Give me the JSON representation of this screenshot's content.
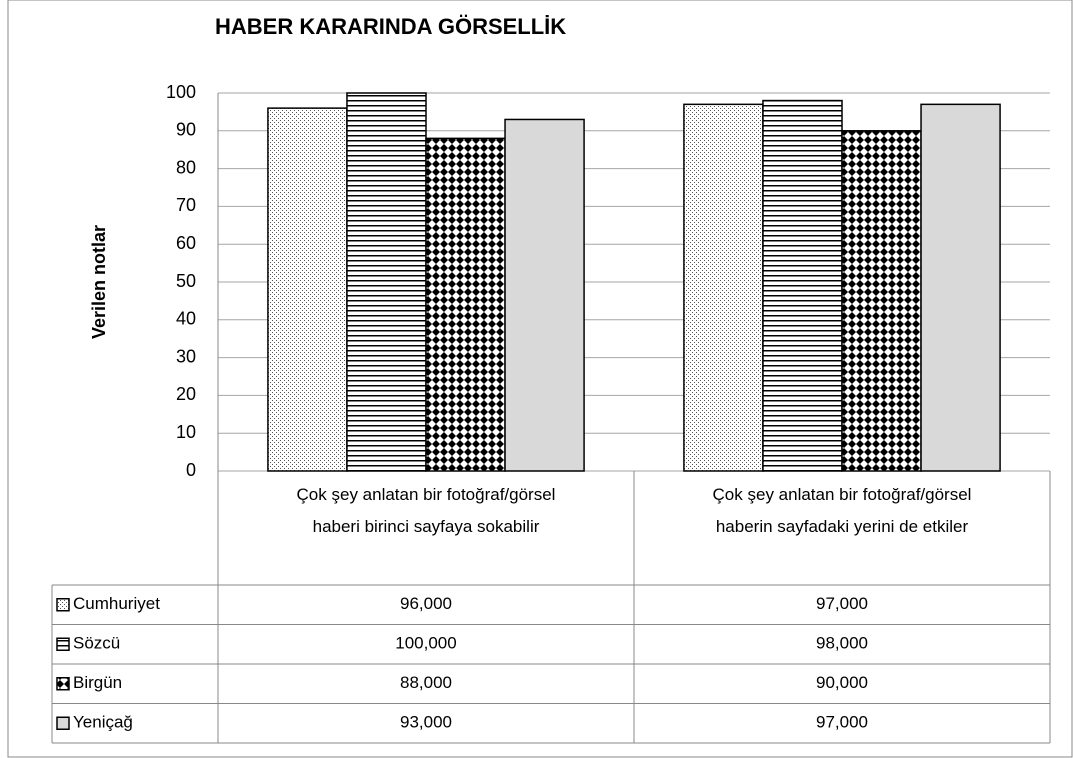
{
  "chart_data": {
    "type": "bar",
    "title": "HABER KARARINDA GÖRSELLİK",
    "y_label": "Verilen notlar",
    "categories": [
      "Çok şey anlatan bir fotoğraf/görsel haberi birinci sayfaya sokabilir",
      "Çok şey anlatan bir fotoğraf/görsel haberin sayfadaki yerini de etkiler"
    ],
    "series": [
      {
        "name": "Cumhuriyet",
        "pattern": "dots",
        "values": [
          96,
          97
        ],
        "value_labels": [
          "96,000",
          "97,000"
        ]
      },
      {
        "name": "Sözcü",
        "pattern": "hlines",
        "values": [
          100,
          98
        ],
        "value_labels": [
          "100,000",
          "98,000"
        ]
      },
      {
        "name": "Birgün",
        "pattern": "diamonds",
        "values": [
          88,
          90
        ],
        "value_labels": [
          "88,000",
          "90,000"
        ]
      },
      {
        "name": "Yeniçağ",
        "pattern": "solid",
        "values": [
          93,
          97
        ],
        "value_labels": [
          "93,000",
          "97,000"
        ]
      }
    ],
    "ylim": [
      0,
      100
    ],
    "yticks": [
      0,
      10,
      20,
      30,
      40,
      50,
      60,
      70,
      80,
      90,
      100
    ],
    "grid": true
  }
}
